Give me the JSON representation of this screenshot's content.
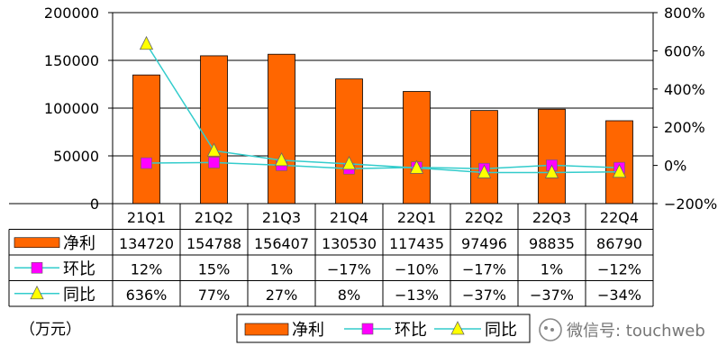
{
  "chart_data": {
    "type": "bar",
    "categories": [
      "21Q1",
      "21Q2",
      "21Q3",
      "21Q4",
      "22Q1",
      "22Q2",
      "22Q3",
      "22Q4"
    ],
    "series": [
      {
        "name": "净利",
        "type": "bar",
        "axis": "left",
        "color": "#ff6600",
        "values": [
          134720,
          154788,
          156407,
          130530,
          117435,
          97496,
          98835,
          86790
        ],
        "labels": [
          "134720",
          "154788",
          "156407",
          "130530",
          "117435",
          "97496",
          "98835",
          "86790"
        ]
      },
      {
        "name": "环比",
        "type": "line",
        "axis": "right",
        "color": "#33cccc",
        "marker_color": "#ff00ff",
        "marker": "square",
        "values": [
          12,
          15,
          1,
          -17,
          -10,
          -17,
          1,
          -12
        ],
        "labels": [
          "12%",
          "15%",
          "1%",
          "−17%",
          "−10%",
          "−17%",
          "1%",
          "−12%"
        ]
      },
      {
        "name": "同比",
        "type": "line",
        "axis": "right",
        "color": "#33cccc",
        "marker_color": "#ffff00",
        "marker": "triangle",
        "values": [
          636,
          77,
          27,
          8,
          -13,
          -37,
          -37,
          -34
        ],
        "labels": [
          "636%",
          "77%",
          "27%",
          "8%",
          "−13%",
          "−37%",
          "−37%",
          "−34%"
        ]
      }
    ],
    "y_left": {
      "ylim": [
        0,
        200000
      ],
      "ticks": [
        0,
        50000,
        100000,
        150000,
        200000
      ],
      "tick_labels": [
        "0",
        "50000",
        "100000",
        "150000",
        "200000"
      ]
    },
    "y_right": {
      "ylim": [
        -200,
        800
      ],
      "ticks": [
        -200,
        0,
        200,
        400,
        600,
        800
      ],
      "tick_labels": [
        "−200%",
        "0%",
        "200%",
        "400%",
        "600%",
        "800%"
      ]
    },
    "unit": "（万元）",
    "grid": true,
    "legend_position": "bottom",
    "legend": [
      {
        "label": "净利"
      },
      {
        "label": "环比"
      },
      {
        "label": "同比"
      }
    ]
  },
  "watermark": {
    "text": "微信号: touchweb"
  }
}
